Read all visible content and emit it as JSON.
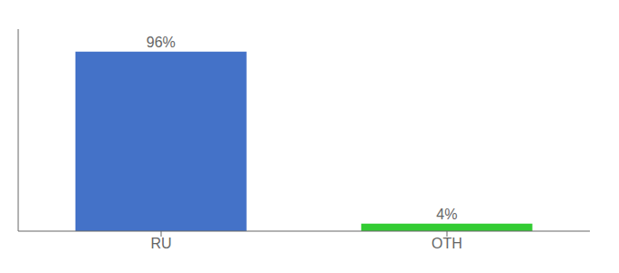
{
  "chart_data": {
    "type": "bar",
    "categories": [
      "RU",
      "OTH"
    ],
    "values": [
      96,
      4
    ],
    "value_labels": [
      "96%",
      "4%"
    ],
    "colors": [
      "#4472c8",
      "#33cc33"
    ],
    "ylim": [
      0,
      108
    ],
    "data_labels": true,
    "tick_labels": "x",
    "grid": false
  }
}
